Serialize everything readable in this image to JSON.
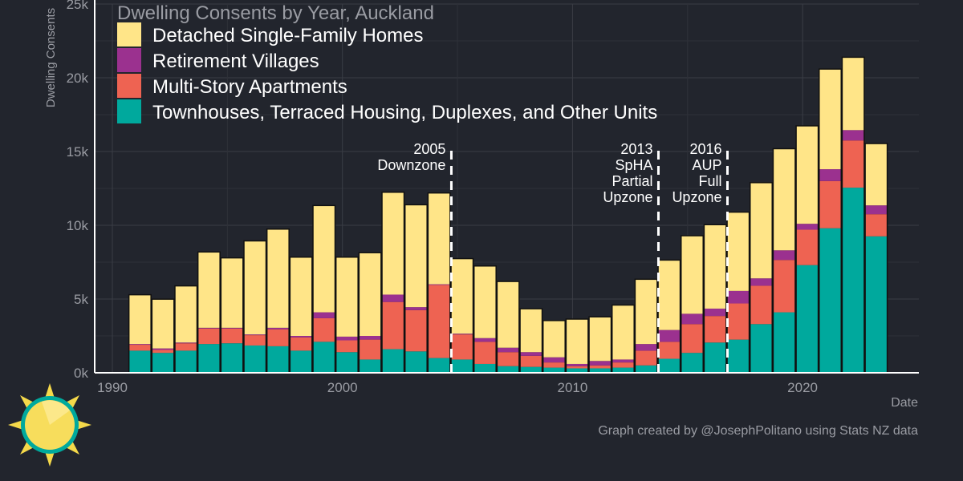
{
  "chart_data": {
    "type": "bar",
    "stacked": true,
    "title": "Dwelling Consents by Year, Auckland",
    "xlabel": "Date",
    "ylabel": "Dwelling Consents",
    "ylim": [
      0,
      25000
    ],
    "yticks": [
      0,
      5000,
      10000,
      15000,
      20000,
      25000
    ],
    "ytick_labels": [
      "0k",
      "5k",
      "10k",
      "15k",
      "20k",
      "25k"
    ],
    "xticks": [
      1990,
      2000,
      2010,
      2020
    ],
    "xtick_labels": [
      "1990",
      "2000",
      "2010",
      "2020"
    ],
    "grid": true,
    "legend_position": "top-left",
    "x": [
      1991,
      1992,
      1993,
      1994,
      1995,
      1996,
      1997,
      1998,
      1999,
      2000,
      2001,
      2002,
      2003,
      2004,
      2005,
      2006,
      2007,
      2008,
      2009,
      2010,
      2011,
      2012,
      2013,
      2014,
      2015,
      2016,
      2017,
      2018,
      2019,
      2020,
      2021,
      2022,
      2023
    ],
    "series": [
      {
        "name": "Townhouses, Terraced Housing, Duplexes, and Other Units",
        "color": "#00a99d",
        "values": [
          1500,
          1350,
          1500,
          1950,
          2000,
          1850,
          1800,
          1500,
          2100,
          1400,
          900,
          1600,
          1450,
          1000,
          900,
          600,
          450,
          400,
          350,
          300,
          300,
          350,
          500,
          950,
          1350,
          2050,
          2250,
          3300,
          4100,
          7300,
          9800,
          12550,
          9250
        ]
      },
      {
        "name": "Multi-Story Apartments",
        "color": "#ee6352",
        "values": [
          400,
          200,
          500,
          1050,
          1000,
          700,
          1150,
          900,
          1600,
          800,
          1350,
          3200,
          2800,
          4950,
          1700,
          1500,
          950,
          750,
          350,
          150,
          200,
          350,
          1000,
          1150,
          1950,
          1800,
          2450,
          2600,
          3550,
          2400,
          3200,
          3200,
          1500
        ]
      },
      {
        "name": "Retirement Villages",
        "color": "#9b318f",
        "values": [
          50,
          100,
          50,
          50,
          50,
          50,
          100,
          100,
          400,
          250,
          250,
          500,
          200,
          50,
          50,
          250,
          300,
          250,
          350,
          150,
          300,
          200,
          450,
          800,
          700,
          500,
          850,
          500,
          650,
          400,
          800,
          700,
          600
        ]
      },
      {
        "name": "Detached Single-Family Homes",
        "color": "#ffe588",
        "values": [
          3300,
          3300,
          3800,
          5100,
          4700,
          6300,
          6650,
          5300,
          7200,
          5350,
          5600,
          6900,
          6900,
          6150,
          5050,
          4850,
          4450,
          2900,
          2450,
          3000,
          2950,
          3650,
          4350,
          4700,
          5250,
          5650,
          5300,
          6450,
          6850,
          6600,
          6750,
          4900,
          4150
        ]
      }
    ],
    "annotations": [
      {
        "x": 2004.5,
        "lines": [
          "2005",
          "Downzone"
        ]
      },
      {
        "x": 2013.5,
        "lines": [
          "2013",
          "SpHA",
          "Partial",
          "Upzone"
        ]
      },
      {
        "x": 2016.5,
        "lines": [
          "2016",
          "AUP",
          "Full",
          "Upzone"
        ]
      }
    ],
    "credit": "Graph created by @JosephPolitano using Stats NZ data"
  },
  "colors": {
    "background": "#22252d",
    "grid": "#3a3d45",
    "axis": "#ffffff"
  }
}
